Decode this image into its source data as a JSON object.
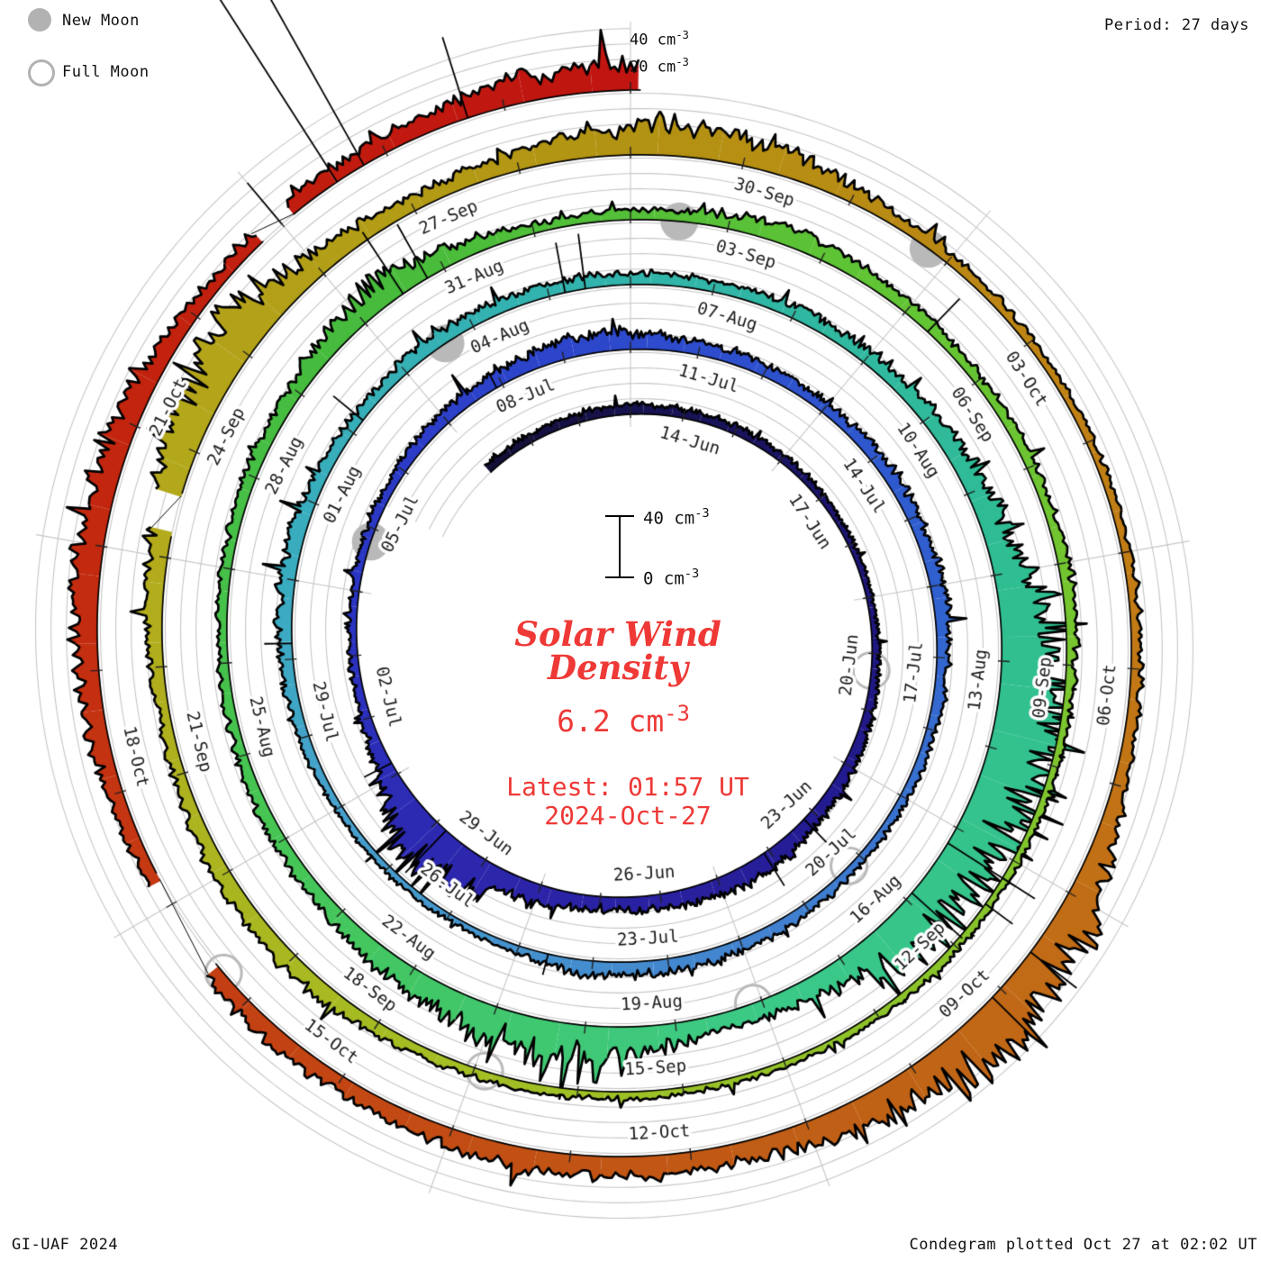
{
  "legend": {
    "new_moon_label": "New Moon",
    "full_moon_label": "Full Moon",
    "marker_color": "#b2b2b2"
  },
  "header": {
    "period_label": "Period: 27 days"
  },
  "footer": {
    "credit": "GI-UAF 2024",
    "plotted": "Condegram plotted Oct 27 at 02:02 UT"
  },
  "radial_axis": {
    "top_label_40": {
      "main": "40 cm",
      "exp": "-3"
    },
    "top_label_20": {
      "main": "20 cm",
      "exp": "-3"
    }
  },
  "scalebar": {
    "top_label": {
      "main": "40 cm",
      "exp": "-3"
    },
    "bottom_label": {
      "main": "0 cm",
      "exp": "-3"
    }
  },
  "center": {
    "title_line1": "Solar Wind",
    "title_line2": "Density",
    "value": {
      "main": "6.2 cm",
      "exp": "-3"
    },
    "latest_line1": "Latest: 01:57 UT",
    "latest_line2": "2024-Oct-27",
    "accent_color": "#ee3936"
  },
  "chart_data": {
    "type": "spiral-area-condegram",
    "title": "Solar Wind Density",
    "units": "cm-3",
    "current_value": 6.2,
    "latest_time": "01:57 UT 2024-Oct-27",
    "period_days": 27,
    "start_date": "2024-06-11",
    "end_day": 138.08,
    "ring_full_scale": 40,
    "gridline_step": 10,
    "grid_color": "#c6c6c6",
    "moon_marker_color": "#b9b9b9",
    "line_color": "#000000",
    "noise_seed": 20241027,
    "date_labels": [
      {
        "day": 3,
        "label": "14-Jun"
      },
      {
        "day": 6,
        "label": "17-Jun"
      },
      {
        "day": 9,
        "label": "20-Jun"
      },
      {
        "day": 12,
        "label": "23-Jun"
      },
      {
        "day": 15,
        "label": "26-Jun"
      },
      {
        "day": 18,
        "label": "29-Jun"
      },
      {
        "day": 21,
        "label": "02-Jul"
      },
      {
        "day": 24,
        "label": "05-Jul"
      },
      {
        "day": 27,
        "label": "08-Jul"
      },
      {
        "day": 30,
        "label": "11-Jul"
      },
      {
        "day": 33,
        "label": "14-Jul"
      },
      {
        "day": 36,
        "label": "17-Jul"
      },
      {
        "day": 39,
        "label": "20-Jul"
      },
      {
        "day": 42,
        "label": "23-Jul"
      },
      {
        "day": 45,
        "label": "26-Jul"
      },
      {
        "day": 48,
        "label": "29-Jul"
      },
      {
        "day": 51,
        "label": "01-Aug"
      },
      {
        "day": 54,
        "label": "04-Aug"
      },
      {
        "day": 57,
        "label": "07-Aug"
      },
      {
        "day": 60,
        "label": "10-Aug"
      },
      {
        "day": 63,
        "label": "13-Aug"
      },
      {
        "day": 66,
        "label": "16-Aug"
      },
      {
        "day": 69,
        "label": "19-Aug"
      },
      {
        "day": 72,
        "label": "22-Aug"
      },
      {
        "day": 75,
        "label": "25-Aug"
      },
      {
        "day": 78,
        "label": "28-Aug"
      },
      {
        "day": 81,
        "label": "31-Aug"
      },
      {
        "day": 84,
        "label": "03-Sep"
      },
      {
        "day": 87,
        "label": "06-Sep"
      },
      {
        "day": 90,
        "label": "09-Sep"
      },
      {
        "day": 93,
        "label": "12-Sep"
      },
      {
        "day": 96,
        "label": "15-Sep"
      },
      {
        "day": 99,
        "label": "18-Sep"
      },
      {
        "day": 102,
        "label": "21-Sep"
      },
      {
        "day": 105,
        "label": "24-Sep"
      },
      {
        "day": 108,
        "label": "27-Sep"
      },
      {
        "day": 111,
        "label": "30-Sep"
      },
      {
        "day": 114,
        "label": "03-Oct"
      },
      {
        "day": 117,
        "label": "06-Oct"
      },
      {
        "day": 120,
        "label": "09-Oct"
      },
      {
        "day": 123,
        "label": "12-Oct"
      },
      {
        "day": 126,
        "label": "15-Oct"
      },
      {
        "day": 129,
        "label": "18-Oct"
      },
      {
        "day": 132,
        "label": "21-Oct"
      }
    ],
    "color_stops": [
      [
        0,
        "#131036"
      ],
      [
        6,
        "#1a1464"
      ],
      [
        12,
        "#221a8e"
      ],
      [
        18,
        "#2c24a8"
      ],
      [
        24,
        "#2b35c4"
      ],
      [
        30,
        "#2d49cc"
      ],
      [
        36,
        "#3060cf"
      ],
      [
        42,
        "#4384cf"
      ],
      [
        48,
        "#46a0cc"
      ],
      [
        51,
        "#3aacc0"
      ],
      [
        57,
        "#31b4ab"
      ],
      [
        63,
        "#2fbd92"
      ],
      [
        69,
        "#3bc987"
      ],
      [
        75,
        "#46c654"
      ],
      [
        81,
        "#46bb3c"
      ],
      [
        87,
        "#62c434"
      ],
      [
        93,
        "#83c52c"
      ],
      [
        99,
        "#a3bf24"
      ],
      [
        105,
        "#b3ab1c"
      ],
      [
        111,
        "#b39313"
      ],
      [
        117,
        "#c27d15"
      ],
      [
        123,
        "#c05f16"
      ],
      [
        129,
        "#c43a12"
      ],
      [
        133,
        "#c2240e"
      ],
      [
        138.1,
        "#c01410"
      ]
    ],
    "density_anchors": [
      [
        0,
        5
      ],
      [
        3,
        6
      ],
      [
        6,
        5
      ],
      [
        9,
        4
      ],
      [
        12,
        7
      ],
      [
        13.5,
        10
      ],
      [
        14.5,
        12
      ],
      [
        15.5,
        10
      ],
      [
        17,
        8
      ],
      [
        18.5,
        14
      ],
      [
        19.3,
        26
      ],
      [
        20.2,
        30
      ],
      [
        21,
        12
      ],
      [
        22,
        6
      ],
      [
        24,
        5
      ],
      [
        26,
        7
      ],
      [
        28,
        9
      ],
      [
        29.5,
        13
      ],
      [
        31,
        8
      ],
      [
        33,
        7
      ],
      [
        36,
        9
      ],
      [
        38,
        6
      ],
      [
        40,
        5
      ],
      [
        42,
        8
      ],
      [
        44,
        9
      ],
      [
        45.5,
        4
      ],
      [
        48,
        5
      ],
      [
        50,
        9
      ],
      [
        51.5,
        10
      ],
      [
        53,
        7
      ],
      [
        54.5,
        9
      ],
      [
        56,
        8
      ],
      [
        57.5,
        7
      ],
      [
        59,
        8
      ],
      [
        60.5,
        9
      ],
      [
        62,
        14
      ],
      [
        63.5,
        30
      ],
      [
        64.5,
        38
      ],
      [
        65.5,
        30
      ],
      [
        66.5,
        34
      ],
      [
        67.5,
        24
      ],
      [
        68.5,
        12
      ],
      [
        69.5,
        10
      ],
      [
        70.5,
        18
      ],
      [
        71.5,
        25
      ],
      [
        72.5,
        18
      ],
      [
        73.5,
        12
      ],
      [
        75,
        8
      ],
      [
        77,
        6
      ],
      [
        78.5,
        7
      ],
      [
        80,
        10
      ],
      [
        81.3,
        18
      ],
      [
        82,
        12
      ],
      [
        83,
        6
      ],
      [
        84.5,
        7
      ],
      [
        85.5,
        12
      ],
      [
        86.5,
        9
      ],
      [
        88,
        6
      ],
      [
        90,
        7
      ],
      [
        92,
        5
      ],
      [
        94,
        5
      ],
      [
        96,
        4
      ],
      [
        98,
        5
      ],
      [
        99.5,
        6
      ],
      [
        100.5,
        10
      ],
      [
        102,
        10
      ],
      [
        103.5,
        7
      ],
      [
        105,
        12
      ],
      [
        106,
        22
      ],
      [
        107,
        30
      ],
      [
        108,
        14
      ],
      [
        109,
        9
      ],
      [
        110,
        13
      ],
      [
        111.3,
        20
      ],
      [
        112.3,
        16
      ],
      [
        113.5,
        7
      ],
      [
        115,
        5
      ],
      [
        117,
        5
      ],
      [
        119,
        8
      ],
      [
        120.3,
        22
      ],
      [
        121.3,
        30
      ],
      [
        122.3,
        22
      ],
      [
        123.5,
        12
      ],
      [
        125,
        14
      ],
      [
        126.5,
        10
      ],
      [
        127.5,
        12
      ],
      [
        128.3,
        8
      ],
      [
        129.5,
        8
      ],
      [
        130.5,
        12
      ],
      [
        131.5,
        15
      ],
      [
        132.5,
        18
      ],
      [
        133.5,
        12
      ],
      [
        134.3,
        8
      ],
      [
        135.5,
        10
      ],
      [
        136.3,
        12
      ],
      [
        137,
        15
      ],
      [
        137.6,
        18
      ],
      [
        138.08,
        16
      ]
    ],
    "spikes": [
      [
        13.2,
        22
      ],
      [
        14.1,
        25
      ],
      [
        19.8,
        38
      ],
      [
        21.2,
        20
      ],
      [
        27.9,
        12
      ],
      [
        44.6,
        14
      ],
      [
        50.2,
        18
      ],
      [
        53.2,
        25
      ],
      [
        56.2,
        33
      ],
      [
        56.45,
        36
      ],
      [
        66.2,
        52
      ],
      [
        66.9,
        44
      ],
      [
        81.5,
        48
      ],
      [
        81.8,
        40
      ],
      [
        87.3,
        30
      ],
      [
        93.2,
        25
      ],
      [
        93.5,
        22
      ],
      [
        120.6,
        38
      ],
      [
        121.1,
        34
      ],
      [
        135.0,
        35
      ],
      [
        135.55,
        175
      ],
      [
        135.8,
        165
      ],
      [
        136.7,
        55
      ]
    ],
    "gaps": [
      [
        105.25,
        105.55
      ],
      [
        128.4,
        129.2
      ],
      [
        134.8,
        135.1
      ]
    ],
    "moons": {
      "new_days": [
        24.8,
        54.6,
        84.5,
        113.8
      ],
      "full_days": [
        10.3,
        40.2,
        69.1,
        98.9,
        128.3
      ]
    }
  }
}
